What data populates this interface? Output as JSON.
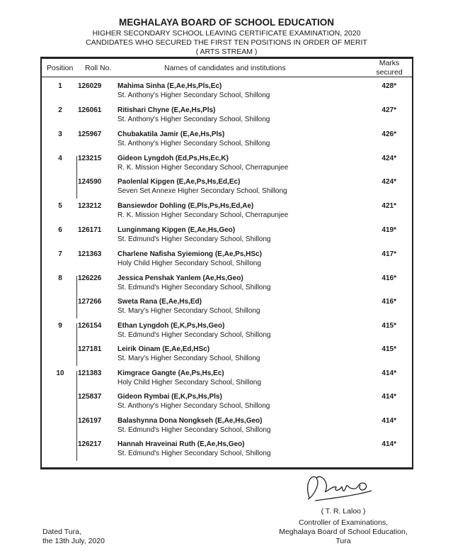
{
  "header": {
    "board": "MEGHALAYA BOARD OF SCHOOL EDUCATION",
    "exam": "HIGHER SECONDARY SCHOOL LEAVING CERTIFICATE EXAMINATION, 2020",
    "subtitle": "CANDIDATES WHO SECURED THE FIRST TEN POSITIONS IN ORDER OF MERIT",
    "stream": "( ARTS STREAM )"
  },
  "columns": {
    "position": "Position",
    "roll": "Roll No.",
    "names": "Names of candidates and institutions",
    "marks_line1": "Marks",
    "marks_line2": "secured"
  },
  "groups": [
    {
      "position": "1",
      "entries": [
        {
          "roll": "126029",
          "name": "Mahima Sinha (E,Ae,Hs,Pls,Ec)",
          "school": "St. Anthony's Higher Secondary School, Shillong",
          "marks": "428*"
        }
      ]
    },
    {
      "position": "2",
      "entries": [
        {
          "roll": "126061",
          "name": "Ritishari Chyne (E,Ae,Hs,Pls)",
          "school": "St. Anthony's Higher Secondary School, Shillong",
          "marks": "427*"
        }
      ]
    },
    {
      "position": "3",
      "entries": [
        {
          "roll": "125967",
          "name": "Chubakatila Jamir (E,Ae,Hs,Pls)",
          "school": "St. Anthony's Higher Secondary School, Shillong",
          "marks": "426*"
        }
      ]
    },
    {
      "position": "4",
      "entries": [
        {
          "roll": "123215",
          "name": "Gideon Lyngdoh (Ed,Ps,Hs,Ec,K)",
          "school": "R. K. Mission Higher Secondary School, Cherrapunjee",
          "marks": "424*"
        },
        {
          "roll": "124590",
          "name": "Paolenlal Kipgen (E,Ae,Ps,Hs,Ed,Ec)",
          "school": "Seven Set Annexe Higher Secondary School, Shillong",
          "marks": "424*"
        }
      ]
    },
    {
      "position": "5",
      "entries": [
        {
          "roll": "123212",
          "name": "Bansiewdor Dohling (E,Pls,Ps,Hs,Ed,Ae)",
          "school": "R. K. Mission Higher Secondary School, Cherrapunjee",
          "marks": "421*"
        }
      ]
    },
    {
      "position": "6",
      "entries": [
        {
          "roll": "126171",
          "name": "Lunginmang Kipgen (E,Ae,Hs,Geo)",
          "school": "St. Edmund's Higher Secondary School, Shillong",
          "marks": "419*"
        }
      ]
    },
    {
      "position": "7",
      "entries": [
        {
          "roll": "121363",
          "name": "Charlene Nafisha Syiemiong (E,Ae,Ps,HSc)",
          "school": "Holy Child Higher Secondary School, Shillong",
          "marks": "417*"
        }
      ]
    },
    {
      "position": "8",
      "entries": [
        {
          "roll": "126226",
          "name": "Jessica Penshak Yanlem (Ae,Hs,Geo)",
          "school": "St. Edmund's Higher Secondary School, Shillong",
          "marks": "416*"
        },
        {
          "roll": "127266",
          "name": "Sweta Rana (E,Ae,Hs,Ed)",
          "school": "St. Mary's Higher Secondary School, Shillong",
          "marks": "416*"
        }
      ]
    },
    {
      "position": "9",
      "entries": [
        {
          "roll": "126154",
          "name": "Ethan Lyngdoh (E,K,Ps,Hs,Geo)",
          "school": "St. Edmund's Higher Secondary School, Shillong",
          "marks": "415*"
        },
        {
          "roll": "127181",
          "name": "Leirik Oinam (E,Ae,Ed,HSc)",
          "school": "St. Mary's Higher Secondary School, Shillong",
          "marks": "415*"
        }
      ]
    },
    {
      "position": "10",
      "entries": [
        {
          "roll": "121383",
          "name": "Kimgrace Gangte (Ae,Ps,Hs,Ec)",
          "school": "Holy Child Higher Secondary School, Shillong",
          "marks": "414*"
        },
        {
          "roll": "125837",
          "name": "Gideon Rymbai (E,K,Ps,Hs,Pls)",
          "school": "St. Anthony's Higher Secondary School, Shillong",
          "marks": "414*"
        },
        {
          "roll": "126197",
          "name": "Balashynna Dona Nongkseh (E,Ae,Hs,Geo)",
          "school": "St. Edmund's Higher Secondary School, Shillong",
          "marks": "414*"
        },
        {
          "roll": "126217",
          "name": "Hannah Hraveinai Ruth (E,Ae,Hs,Geo)",
          "school": "St. Edmund's Higher Secondary School, Shillong",
          "marks": "414*"
        }
      ]
    }
  ],
  "footer": {
    "signatory": "( T. R. Laloo )",
    "designation": "Controller of Examinations,",
    "organization": "Meghalaya Board of School Education,",
    "place": "Tura",
    "dated_line1": "Dated Tura,",
    "dated_line2": "the 13th July, 2020",
    "signature_text": "Laloo"
  }
}
